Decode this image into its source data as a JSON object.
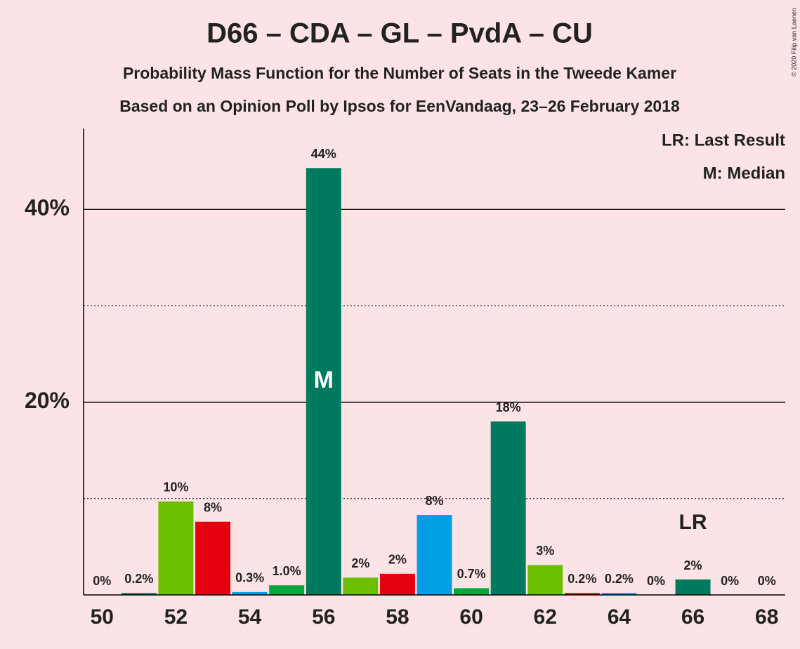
{
  "chart_data": {
    "type": "bar",
    "title": "D66 – CDA – GL – PvdA – CU",
    "subtitle": "Probability Mass Function for the Number of Seats in the Tweede Kamer",
    "subtitle2": "Based on an Opinion Poll by Ipsos for EenVandaag, 23–26 February 2018",
    "copyright": "© 2020 Filip van Laenen",
    "legend": [
      "LR: Last Result",
      "M: Median"
    ],
    "x": [
      50,
      51,
      52,
      53,
      54,
      55,
      56,
      57,
      58,
      59,
      60,
      61,
      62,
      63,
      64,
      65,
      66,
      67,
      68
    ],
    "values": [
      0,
      0.2,
      9.7,
      7.6,
      0.3,
      1.0,
      44.3,
      1.8,
      2.2,
      8.3,
      0.7,
      18.0,
      3.1,
      0.2,
      0.2,
      0,
      1.6,
      0,
      0
    ],
    "value_labels": [
      "0%",
      "0.2%",
      "10%",
      "8%",
      "0.3%",
      "1.0%",
      "44%",
      "2%",
      "2%",
      "8%",
      "0.7%",
      "18%",
      "3%",
      "0.2%",
      "0.2%",
      "0%",
      "2%",
      "0%",
      "0%"
    ],
    "colors": [
      "#00a83d",
      "#007a5e",
      "#6cbe00",
      "#e3000f",
      "#009fe3",
      "#00a83d",
      "#007a5e",
      "#6cbe00",
      "#e3000f",
      "#009fe3",
      "#00a83d",
      "#007a5e",
      "#6cbe00",
      "#e3000f",
      "#009fe3",
      "#00a83d",
      "#007a5e",
      "#6cbe00",
      "#e3000f"
    ],
    "median": {
      "x": 56,
      "label": "M"
    },
    "last_result": {
      "x": 66,
      "label": "LR"
    },
    "xlim": [
      49.5,
      68.5
    ],
    "xticks": [
      50,
      52,
      54,
      56,
      58,
      60,
      62,
      64,
      66,
      68
    ],
    "ylim": [
      0,
      48.4
    ],
    "yticks": [
      {
        "value": 20,
        "label": "20%"
      },
      {
        "value": 40,
        "label": "40%"
      }
    ],
    "minor_yticks": [
      10,
      30
    ],
    "grid": true
  }
}
